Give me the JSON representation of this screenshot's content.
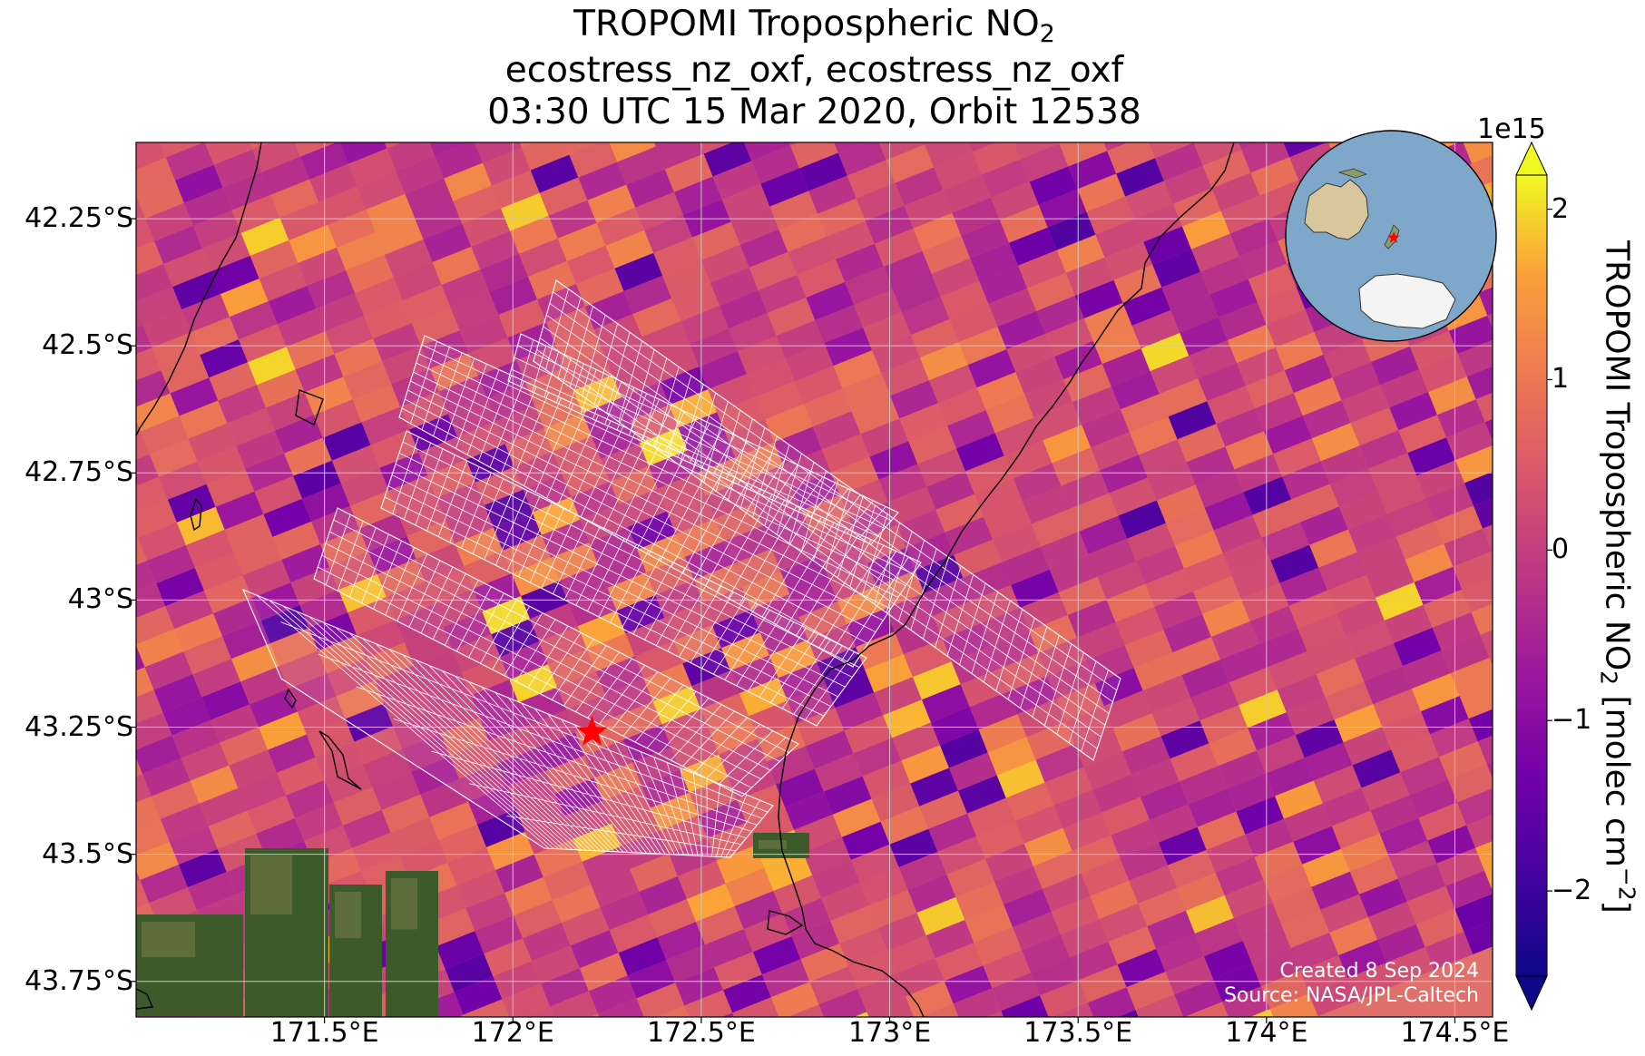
{
  "title": {
    "line1_main": "TROPOMI Tropospheric NO",
    "line1_sub": "2",
    "line2": "ecostress_nz_oxf, ecostress_nz_oxf",
    "line3": "03:30 UTC 15 Mar 2020, Orbit 12538"
  },
  "map": {
    "lon_range": [
      171.0,
      174.6
    ],
    "lat_range": [
      -43.82,
      -42.1
    ],
    "lat_ticks": [
      {
        "value": -42.25,
        "label": "42.25°S"
      },
      {
        "value": -42.5,
        "label": "42.5°S"
      },
      {
        "value": -42.75,
        "label": "42.75°S"
      },
      {
        "value": -43.0,
        "label": "43°S"
      },
      {
        "value": -43.25,
        "label": "43.25°S"
      },
      {
        "value": -43.5,
        "label": "43.5°S"
      },
      {
        "value": -43.75,
        "label": "43.75°S"
      }
    ],
    "lon_ticks": [
      {
        "value": 171.5,
        "label": "171.5°E"
      },
      {
        "value": 172.0,
        "label": "172°E"
      },
      {
        "value": 172.5,
        "label": "172.5°E"
      },
      {
        "value": 173.0,
        "label": "173°E"
      },
      {
        "value": 173.5,
        "label": "173.5°E"
      },
      {
        "value": 174.0,
        "label": "174°E"
      },
      {
        "value": 174.5,
        "label": "174.5°E"
      }
    ],
    "site_marker": {
      "lon": 172.21,
      "lat": -43.26,
      "color": "#ff0000"
    },
    "gridline_color": "#c8c8c8",
    "footprint_color": "#ffffff",
    "coastline_color": "#000000"
  },
  "colorbar": {
    "exponent_label": "1e15",
    "label_main": "TROPOMI Tropospheric NO",
    "label_sub": "2",
    "label_units": " [molec cm",
    "label_sup": "−2",
    "label_end": "]",
    "range": [
      -2.5,
      2.2
    ],
    "ticks": [
      {
        "value": 2,
        "label": "2"
      },
      {
        "value": 1,
        "label": "1"
      },
      {
        "value": 0,
        "label": "0"
      },
      {
        "value": -1,
        "label": "−1"
      },
      {
        "value": -2,
        "label": "−2"
      }
    ],
    "colormap": "plasma",
    "extend": "both"
  },
  "credits": {
    "created": "Created 8 Sep 2024",
    "source": "Source: NASA/JPL-Caltech"
  },
  "inset": {
    "icon": "globe-locator-icon",
    "ocean_color": "#7ea7c9",
    "marker_color": "#ff0000"
  }
}
